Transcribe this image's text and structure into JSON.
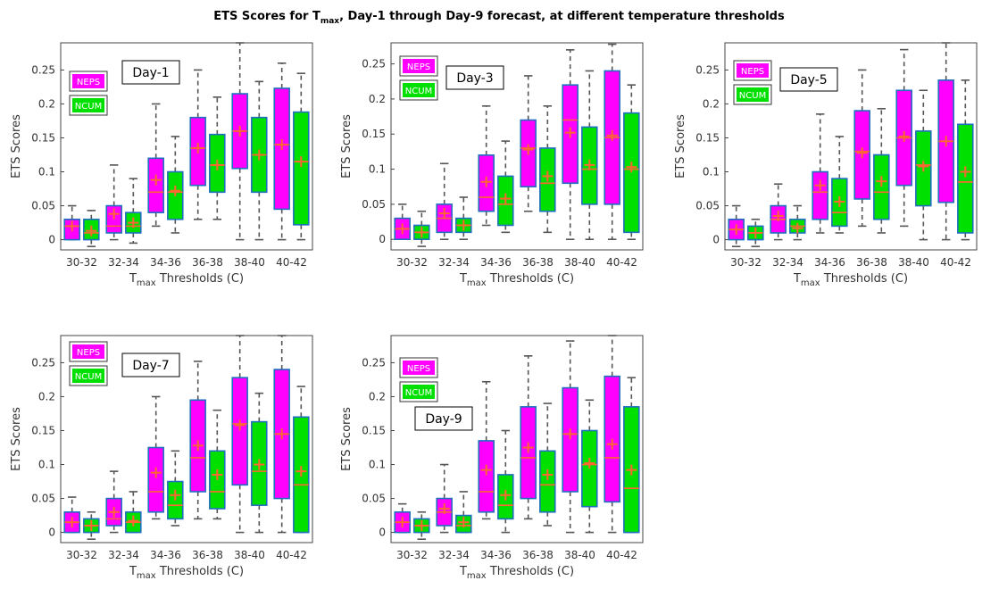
{
  "title": {
    "prefix": "ETS Scores for T",
    "sub": "max",
    "suffix": ", Day-1 through Day-9 forecast, at different temperature thresholds"
  },
  "colors": {
    "NEPS": "#ff00ff",
    "NCUM": "#00e000",
    "box_edge": "#1f6fbf",
    "median": "#ff6633",
    "mean_marker": "#ff6633",
    "whisker": "#555555"
  },
  "chart_data": [
    {
      "type": "box",
      "panel_label": "Day-1",
      "xlabel": {
        "prefix": "T",
        "sub": "max",
        "suffix": " Thresholds (C)"
      },
      "ylabel": "ETS Scores",
      "ylim": [
        -0.015,
        0.29
      ],
      "yticks": [
        0,
        0.05,
        0.1,
        0.15,
        0.2,
        0.25
      ],
      "categories": [
        "30-32",
        "32-34",
        "34-36",
        "36-38",
        "38-40",
        "40-42"
      ],
      "legend": [
        "NEPS",
        "NCUM"
      ],
      "series": [
        {
          "name": "NEPS",
          "boxes": [
            {
              "min": 0.0,
              "q1": 0.0,
              "median": 0.02,
              "q3": 0.03,
              "max": 0.05,
              "mean": 0.02
            },
            {
              "min": 0.0,
              "q1": 0.01,
              "median": 0.02,
              "q3": 0.05,
              "max": 0.11,
              "mean": 0.038
            },
            {
              "min": 0.02,
              "q1": 0.04,
              "median": 0.07,
              "q3": 0.12,
              "max": 0.2,
              "mean": 0.088
            },
            {
              "min": 0.03,
              "q1": 0.08,
              "median": 0.135,
              "q3": 0.18,
              "max": 0.25,
              "mean": 0.135
            },
            {
              "min": 0.0,
              "q1": 0.105,
              "median": 0.16,
              "q3": 0.215,
              "max": 0.29,
              "mean": 0.16
            },
            {
              "min": 0.0,
              "q1": 0.045,
              "median": 0.14,
              "q3": 0.223,
              "max": 0.26,
              "mean": 0.14
            }
          ]
        },
        {
          "name": "NCUM",
          "boxes": [
            {
              "min": -0.01,
              "q1": 0.0,
              "median": 0.01,
              "q3": 0.03,
              "max": 0.043,
              "mean": 0.013
            },
            {
              "min": -0.005,
              "q1": 0.01,
              "median": 0.02,
              "q3": 0.04,
              "max": 0.09,
              "mean": 0.025
            },
            {
              "min": 0.01,
              "q1": 0.03,
              "median": 0.07,
              "q3": 0.1,
              "max": 0.152,
              "mean": 0.072
            },
            {
              "min": 0.03,
              "q1": 0.07,
              "median": 0.11,
              "q3": 0.155,
              "max": 0.21,
              "mean": 0.11
            },
            {
              "min": 0.0,
              "q1": 0.07,
              "median": 0.125,
              "q3": 0.18,
              "max": 0.233,
              "mean": 0.125
            },
            {
              "min": 0.0,
              "q1": 0.022,
              "median": 0.115,
              "q3": 0.188,
              "max": 0.245,
              "mean": 0.115
            }
          ]
        }
      ]
    },
    {
      "type": "box",
      "panel_label": "Day-3",
      "xlabel": {
        "prefix": "T",
        "sub": "max",
        "suffix": " Thresholds (C)"
      },
      "ylabel": "ETS Scores",
      "ylim": [
        -0.015,
        0.28
      ],
      "yticks": [
        0,
        0.05,
        0.1,
        0.15,
        0.2,
        0.25
      ],
      "categories": [
        "30-32",
        "32-34",
        "34-36",
        "36-38",
        "38-40",
        "40-42"
      ],
      "legend": [
        "NEPS",
        "NCUM"
      ],
      "series": [
        {
          "name": "NEPS",
          "boxes": [
            {
              "min": 0.0,
              "q1": 0.0,
              "median": 0.015,
              "q3": 0.03,
              "max": 0.05,
              "mean": 0.015
            },
            {
              "min": 0.0,
              "q1": 0.01,
              "median": 0.03,
              "q3": 0.05,
              "max": 0.108,
              "mean": 0.037
            },
            {
              "min": 0.02,
              "q1": 0.04,
              "median": 0.06,
              "q3": 0.12,
              "max": 0.19,
              "mean": 0.082
            },
            {
              "min": 0.04,
              "q1": 0.075,
              "median": 0.13,
              "q3": 0.17,
              "max": 0.233,
              "mean": 0.128
            },
            {
              "min": 0.0,
              "q1": 0.08,
              "median": 0.17,
              "q3": 0.22,
              "max": 0.27,
              "mean": 0.152
            },
            {
              "min": 0.0,
              "q1": 0.05,
              "median": 0.145,
              "q3": 0.24,
              "max": 0.278,
              "mean": 0.148
            }
          ]
        },
        {
          "name": "NCUM",
          "boxes": [
            {
              "min": -0.01,
              "q1": 0.0,
              "median": 0.01,
              "q3": 0.02,
              "max": 0.04,
              "mean": 0.01
            },
            {
              "min": 0.0,
              "q1": 0.01,
              "median": 0.02,
              "q3": 0.03,
              "max": 0.06,
              "mean": 0.02
            },
            {
              "min": 0.01,
              "q1": 0.02,
              "median": 0.05,
              "q3": 0.09,
              "max": 0.14,
              "mean": 0.058
            },
            {
              "min": 0.01,
              "q1": 0.04,
              "median": 0.08,
              "q3": 0.13,
              "max": 0.19,
              "mean": 0.09
            },
            {
              "min": 0.0,
              "q1": 0.05,
              "median": 0.1,
              "q3": 0.16,
              "max": 0.24,
              "mean": 0.106
            },
            {
              "min": 0.0,
              "q1": 0.01,
              "median": 0.1,
              "q3": 0.18,
              "max": 0.22,
              "mean": 0.103
            }
          ]
        }
      ]
    },
    {
      "type": "box",
      "panel_label": "Day-5",
      "xlabel": {
        "prefix": "T",
        "sub": "max",
        "suffix": " Thresholds (C)"
      },
      "ylabel": "ETS Scores",
      "ylim": [
        -0.015,
        0.29
      ],
      "yticks": [
        0,
        0.05,
        0.1,
        0.15,
        0.2,
        0.25
      ],
      "categories": [
        "30-32",
        "32-34",
        "34-36",
        "36-38",
        "38-40",
        "40-42"
      ],
      "legend": [
        "NEPS",
        "NCUM"
      ],
      "series": [
        {
          "name": "NEPS",
          "boxes": [
            {
              "min": -0.01,
              "q1": 0.0,
              "median": 0.015,
              "q3": 0.03,
              "max": 0.05,
              "mean": 0.015
            },
            {
              "min": 0.0,
              "q1": 0.01,
              "median": 0.03,
              "q3": 0.05,
              "max": 0.082,
              "mean": 0.035
            },
            {
              "min": 0.01,
              "q1": 0.03,
              "median": 0.07,
              "q3": 0.1,
              "max": 0.185,
              "mean": 0.08
            },
            {
              "min": 0.02,
              "q1": 0.06,
              "median": 0.13,
              "q3": 0.19,
              "max": 0.25,
              "mean": 0.128
            },
            {
              "min": 0.02,
              "q1": 0.08,
              "median": 0.15,
              "q3": 0.22,
              "max": 0.28,
              "mean": 0.152
            },
            {
              "min": 0.0,
              "q1": 0.055,
              "median": 0.145,
              "q3": 0.235,
              "max": 0.29,
              "mean": 0.145
            }
          ]
        },
        {
          "name": "NCUM",
          "boxes": [
            {
              "min": -0.01,
              "q1": 0.0,
              "median": 0.01,
              "q3": 0.02,
              "max": 0.03,
              "mean": 0.01
            },
            {
              "min": 0.0,
              "q1": 0.01,
              "median": 0.02,
              "q3": 0.03,
              "max": 0.05,
              "mean": 0.017
            },
            {
              "min": 0.01,
              "q1": 0.02,
              "median": 0.04,
              "q3": 0.09,
              "max": 0.152,
              "mean": 0.056
            },
            {
              "min": 0.01,
              "q1": 0.03,
              "median": 0.07,
              "q3": 0.125,
              "max": 0.193,
              "mean": 0.086
            },
            {
              "min": 0.0,
              "q1": 0.05,
              "median": 0.11,
              "q3": 0.16,
              "max": 0.22,
              "mean": 0.108
            },
            {
              "min": 0.0,
              "q1": 0.01,
              "median": 0.085,
              "q3": 0.17,
              "max": 0.235,
              "mean": 0.1
            }
          ]
        }
      ]
    },
    {
      "type": "box",
      "panel_label": "Day-7",
      "xlabel": {
        "prefix": "T",
        "sub": "max",
        "suffix": " Thresholds (C)"
      },
      "ylabel": "ETS Scores",
      "ylim": [
        -0.015,
        0.29
      ],
      "yticks": [
        0,
        0.05,
        0.1,
        0.15,
        0.2,
        0.25
      ],
      "categories": [
        "30-32",
        "32-34",
        "34-36",
        "36-38",
        "38-40",
        "40-42"
      ],
      "legend": [
        "NEPS",
        "NCUM"
      ],
      "series": [
        {
          "name": "NEPS",
          "boxes": [
            {
              "min": 0.0,
              "q1": 0.0,
              "median": 0.015,
              "q3": 0.03,
              "max": 0.052,
              "mean": 0.015
            },
            {
              "min": 0.0,
              "q1": 0.01,
              "median": 0.02,
              "q3": 0.05,
              "max": 0.09,
              "mean": 0.03
            },
            {
              "min": 0.02,
              "q1": 0.03,
              "median": 0.06,
              "q3": 0.125,
              "max": 0.2,
              "mean": 0.088
            },
            {
              "min": 0.02,
              "q1": 0.06,
              "median": 0.11,
              "q3": 0.195,
              "max": 0.252,
              "mean": 0.128
            },
            {
              "min": 0.0,
              "q1": 0.07,
              "median": 0.16,
              "q3": 0.228,
              "max": 0.29,
              "mean": 0.158
            },
            {
              "min": 0.0,
              "q1": 0.05,
              "median": 0.145,
              "q3": 0.24,
              "max": 0.29,
              "mean": 0.145
            }
          ]
        },
        {
          "name": "NCUM",
          "boxes": [
            {
              "min": -0.01,
              "q1": 0.0,
              "median": 0.01,
              "q3": 0.02,
              "max": 0.03,
              "mean": 0.01
            },
            {
              "min": 0.0,
              "q1": 0.0,
              "median": 0.015,
              "q3": 0.03,
              "max": 0.06,
              "mean": 0.017
            },
            {
              "min": 0.01,
              "q1": 0.02,
              "median": 0.04,
              "q3": 0.075,
              "max": 0.12,
              "mean": 0.055
            },
            {
              "min": 0.02,
              "q1": 0.035,
              "median": 0.06,
              "q3": 0.12,
              "max": 0.18,
              "mean": 0.085
            },
            {
              "min": 0.0,
              "q1": 0.04,
              "median": 0.09,
              "q3": 0.163,
              "max": 0.205,
              "mean": 0.1
            },
            {
              "min": 0.0,
              "q1": 0.0,
              "median": 0.07,
              "q3": 0.17,
              "max": 0.215,
              "mean": 0.09
            }
          ]
        }
      ]
    },
    {
      "type": "box",
      "panel_label": "Day-9",
      "xlabel": {
        "prefix": "T",
        "sub": "max",
        "suffix": " Thresholds (C)"
      },
      "ylabel": "ETS Scores",
      "ylim": [
        -0.015,
        0.29
      ],
      "yticks": [
        0,
        0.05,
        0.1,
        0.15,
        0.2,
        0.25
      ],
      "categories": [
        "30-32",
        "32-34",
        "34-36",
        "36-38",
        "38-40",
        "40-42"
      ],
      "legend": [
        "NEPS",
        "NCUM"
      ],
      "series": [
        {
          "name": "NEPS",
          "boxes": [
            {
              "min": 0.0,
              "q1": 0.0,
              "median": 0.015,
              "q3": 0.03,
              "max": 0.042,
              "mean": 0.015
            },
            {
              "min": 0.0,
              "q1": 0.01,
              "median": 0.03,
              "q3": 0.05,
              "max": 0.1,
              "mean": 0.035
            },
            {
              "min": 0.02,
              "q1": 0.03,
              "median": 0.06,
              "q3": 0.135,
              "max": 0.222,
              "mean": 0.092
            },
            {
              "min": 0.02,
              "q1": 0.05,
              "median": 0.11,
              "q3": 0.185,
              "max": 0.26,
              "mean": 0.125
            },
            {
              "min": 0.0,
              "q1": 0.06,
              "median": 0.145,
              "q3": 0.213,
              "max": 0.282,
              "mean": 0.145
            },
            {
              "min": 0.0,
              "q1": 0.045,
              "median": 0.11,
              "q3": 0.23,
              "max": 0.29,
              "mean": 0.13
            }
          ]
        },
        {
          "name": "NCUM",
          "boxes": [
            {
              "min": -0.01,
              "q1": 0.0,
              "median": 0.01,
              "q3": 0.02,
              "max": 0.03,
              "mean": 0.01
            },
            {
              "min": 0.0,
              "q1": 0.0,
              "median": 0.01,
              "q3": 0.025,
              "max": 0.06,
              "mean": 0.015
            },
            {
              "min": 0.0,
              "q1": 0.02,
              "median": 0.04,
              "q3": 0.085,
              "max": 0.15,
              "mean": 0.055
            },
            {
              "min": 0.01,
              "q1": 0.03,
              "median": 0.07,
              "q3": 0.12,
              "max": 0.19,
              "mean": 0.085
            },
            {
              "min": 0.0,
              "q1": 0.038,
              "median": 0.1,
              "q3": 0.15,
              "max": 0.195,
              "mean": 0.102
            },
            {
              "min": 0.0,
              "q1": 0.0,
              "median": 0.065,
              "q3": 0.185,
              "max": 0.228,
              "mean": 0.092
            }
          ]
        }
      ]
    }
  ]
}
